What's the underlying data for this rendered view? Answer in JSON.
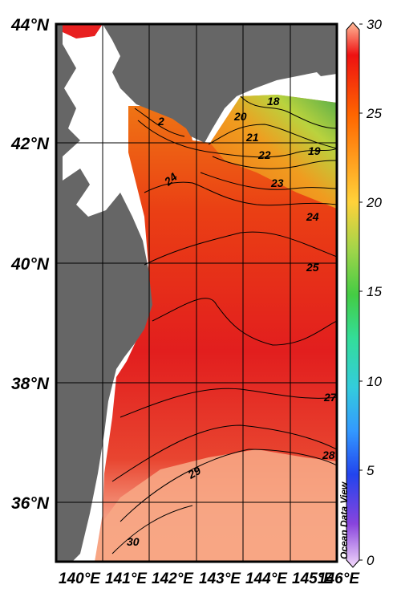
{
  "map": {
    "lat_labels": [
      "44°N",
      "42°N",
      "40°N",
      "38°N",
      "36°N"
    ],
    "lon_labels": [
      "140°E",
      "141°E",
      "142°E",
      "143°E",
      "144°E",
      "145°E",
      "146°E"
    ],
    "lon_range": [
      140,
      146
    ],
    "lat_range": [
      35,
      44
    ],
    "land_color": "#666666",
    "water_color": "#ffffff"
  },
  "colorbar": {
    "min": 0,
    "max": 30,
    "tick_labels": [
      "30",
      "25",
      "20",
      "15",
      "10",
      "5",
      "0"
    ],
    "colors": [
      "#ffbb99",
      "#ee1111",
      "#ff9900",
      "#ffd23a",
      "#9ed44a",
      "#44cc44",
      "#33dd99",
      "#33ccdd",
      "#3399ff",
      "#2244ee",
      "#8844dd",
      "#dd66ff",
      "#f3d9fb"
    ]
  },
  "contour_labels": [
    "2",
    "24",
    "20",
    "21",
    "22",
    "23",
    "24",
    "25",
    "19",
    "18",
    "27",
    "28",
    "29",
    "30"
  ],
  "watermark": "Ocean Data View"
}
